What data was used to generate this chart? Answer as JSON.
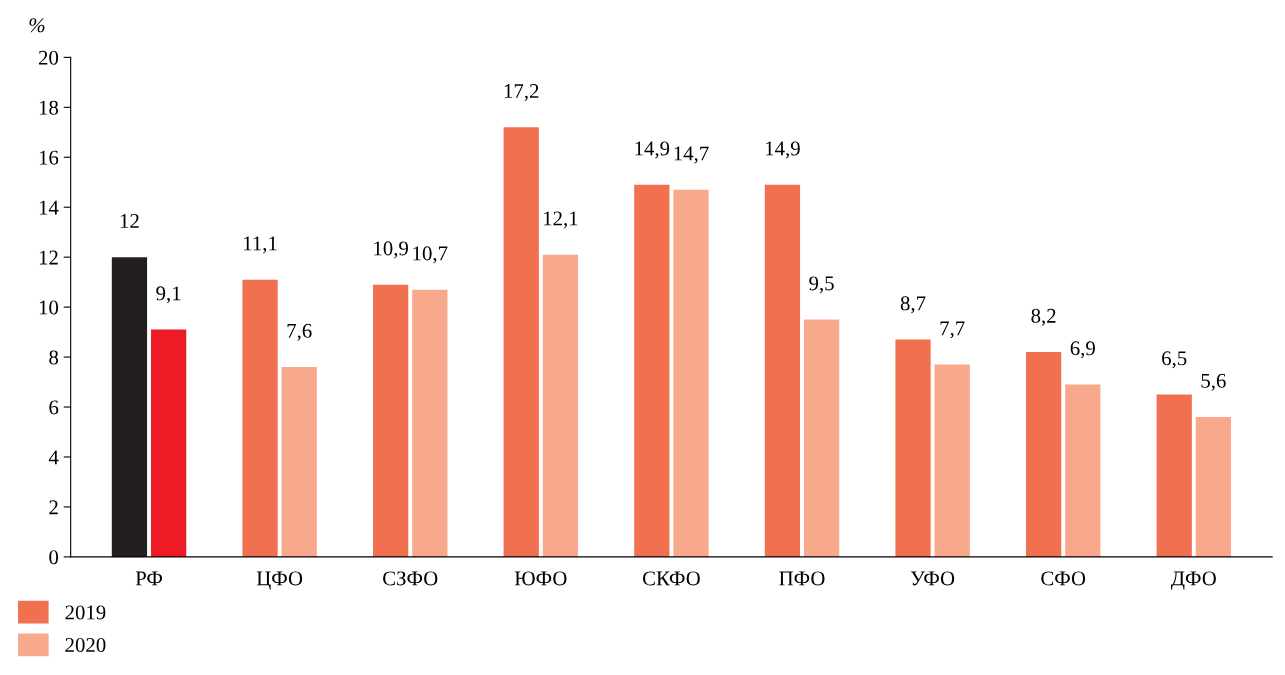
{
  "chart_data": {
    "type": "bar",
    "ylabel": "%",
    "categories": [
      "РФ",
      "ЦФО",
      "СЗФО",
      "ЮФО",
      "СКФО",
      "ПФО",
      "УФО",
      "СФО",
      "ДФО"
    ],
    "series": [
      {
        "name": "2019",
        "color": "#f07050",
        "colors": [
          "#231f20",
          "#f07050",
          "#f07050",
          "#f07050",
          "#f07050",
          "#f07050",
          "#f07050",
          "#f07050",
          "#f07050"
        ],
        "values": [
          12,
          11.1,
          10.9,
          17.2,
          14.9,
          14.9,
          8.7,
          8.2,
          6.5
        ],
        "value_labels": [
          "12",
          "11,1",
          "10,9",
          "17,2",
          "14,9",
          "14,9",
          "8,7",
          "8,2",
          "6,5"
        ]
      },
      {
        "name": "2020",
        "color": "#f8a98c",
        "colors": [
          "#ed1c24",
          "#f8a98c",
          "#f8a98c",
          "#f8a98c",
          "#f8a98c",
          "#f8a98c",
          "#f8a98c",
          "#f8a98c",
          "#f8a98c"
        ],
        "values": [
          9.1,
          7.6,
          10.7,
          12.1,
          14.7,
          9.5,
          7.7,
          6.9,
          5.6
        ],
        "value_labels": [
          "9,1",
          "7,6",
          "10,7",
          "12,1",
          "14,7",
          "9,5",
          "7,7",
          "6,9",
          "5,6"
        ]
      }
    ],
    "ylim": [
      0,
      20
    ],
    "yticks": [
      0,
      2,
      4,
      6,
      8,
      10,
      12,
      14,
      16,
      18,
      20
    ],
    "grid": false,
    "legend": "bottom left"
  }
}
